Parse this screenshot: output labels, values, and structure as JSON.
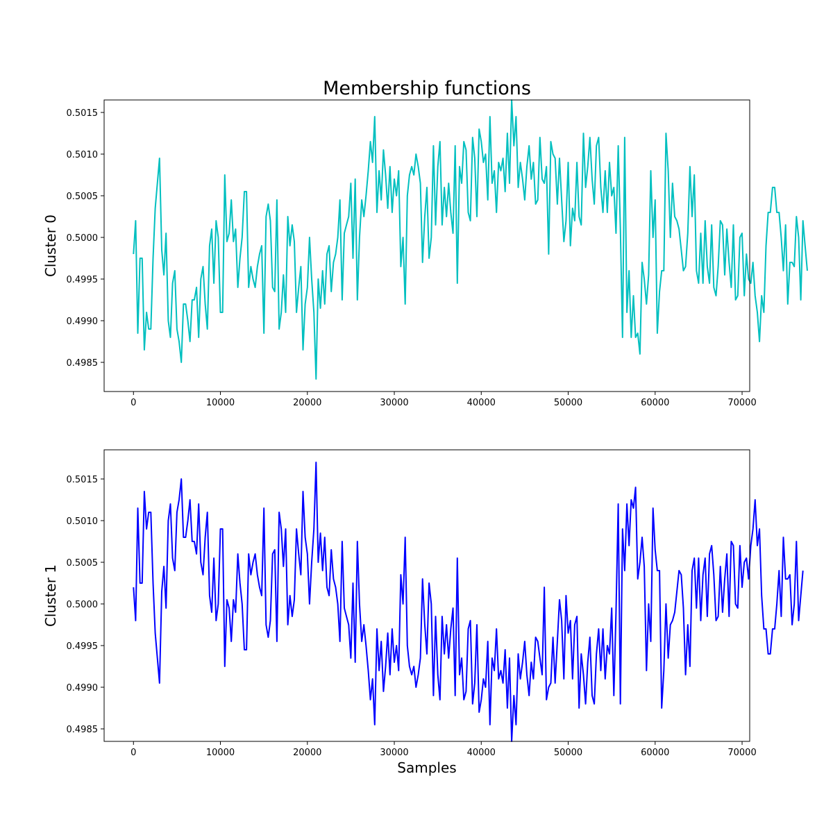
{
  "chart_data": [
    {
      "type": "line",
      "title": "Membership functions",
      "xlabel": "",
      "ylabel": "Cluster 0",
      "xlim": [
        -3375,
        70875
      ],
      "ylim": [
        0.49815,
        0.50165
      ],
      "xticks": [
        0,
        10000,
        20000,
        30000,
        40000,
        50000,
        60000,
        70000
      ],
      "xtick_labels": [
        "0",
        "10000",
        "20000",
        "30000",
        "40000",
        "50000",
        "60000",
        "70000"
      ],
      "yticks": [
        0.4985,
        0.499,
        0.4995,
        0.5,
        0.5005,
        0.501,
        0.5015
      ],
      "ytick_labels": [
        "0.4985",
        "0.4990",
        "0.4995",
        "0.5000",
        "0.5005",
        "0.5010",
        "0.5015"
      ],
      "grid": false,
      "series": [
        {
          "color": "#00bfbf",
          "x_start": 0,
          "x_step": 250,
          "values": [
            0.4998,
            0.5002,
            0.49885,
            0.49975,
            0.49975,
            0.49865,
            0.4991,
            0.4989,
            0.4989,
            0.49975,
            0.50035,
            0.50065,
            0.50095,
            0.49985,
            0.49955,
            0.50005,
            0.499,
            0.4988,
            0.49945,
            0.4996,
            0.4989,
            0.49875,
            0.4985,
            0.4992,
            0.4992,
            0.499,
            0.49875,
            0.49925,
            0.49925,
            0.4994,
            0.4988,
            0.4995,
            0.49965,
            0.4992,
            0.4989,
            0.4999,
            0.5001,
            0.49945,
            0.5002,
            0.5,
            0.4991,
            0.4991,
            0.50075,
            0.49995,
            0.50005,
            0.50045,
            0.49995,
            0.5001,
            0.4994,
            0.49975,
            0.5,
            0.50055,
            0.50055,
            0.4994,
            0.49965,
            0.4995,
            0.4994,
            0.49965,
            0.4998,
            0.4999,
            0.49885,
            0.50025,
            0.5004,
            0.5002,
            0.4994,
            0.49935,
            0.50045,
            0.4989,
            0.4991,
            0.49955,
            0.4991,
            0.50025,
            0.4999,
            0.50015,
            0.49995,
            0.4991,
            0.4994,
            0.49965,
            0.49865,
            0.4992,
            0.4994,
            0.5,
            0.4995,
            0.4991,
            0.4983,
            0.4995,
            0.49915,
            0.4996,
            0.4992,
            0.4998,
            0.4999,
            0.49935,
            0.4997,
            0.4998,
            0.5,
            0.50045,
            0.49925,
            0.50005,
            0.50015,
            0.50025,
            0.50065,
            0.49975,
            0.5007,
            0.49925,
            0.5,
            0.50045,
            0.50025,
            0.5005,
            0.5008,
            0.50115,
            0.5009,
            0.50145,
            0.5003,
            0.5008,
            0.50045,
            0.50105,
            0.50075,
            0.50035,
            0.50085,
            0.5003,
            0.5007,
            0.5005,
            0.5008,
            0.49965,
            0.5,
            0.4992,
            0.5005,
            0.50075,
            0.50085,
            0.50075,
            0.501,
            0.50085,
            0.50065,
            0.4997,
            0.50025,
            0.5006,
            0.49975,
            0.5,
            0.5011,
            0.50015,
            0.50085,
            0.50115,
            0.50015,
            0.5006,
            0.50025,
            0.50065,
            0.5003,
            0.50005,
            0.5011,
            0.49945,
            0.50085,
            0.50065,
            0.50115,
            0.50105,
            0.5003,
            0.5002,
            0.5012,
            0.50095,
            0.50025,
            0.5013,
            0.50115,
            0.5009,
            0.501,
            0.50045,
            0.50145,
            0.50065,
            0.5008,
            0.5003,
            0.5009,
            0.5008,
            0.50095,
            0.50055,
            0.50125,
            0.50065,
            0.50165,
            0.5011,
            0.50145,
            0.5006,
            0.5009,
            0.5007,
            0.50045,
            0.50085,
            0.5011,
            0.5007,
            0.5009,
            0.5004,
            0.50045,
            0.5012,
            0.5007,
            0.50065,
            0.50085,
            0.4998,
            0.50115,
            0.501,
            0.50095,
            0.5004,
            0.50095,
            0.50045,
            0.49995,
            0.5002,
            0.5009,
            0.4999,
            0.50035,
            0.5002,
            0.5009,
            0.50025,
            0.50015,
            0.50125,
            0.5006,
            0.50085,
            0.5012,
            0.5007,
            0.5004,
            0.5011,
            0.5012,
            0.5006,
            0.5003,
            0.5008,
            0.5003,
            0.5009,
            0.5005,
            0.5006,
            0.50005,
            0.5011,
            0.5001,
            0.4988,
            0.5012,
            0.4991,
            0.4996,
            0.4988,
            0.4993,
            0.4988,
            0.49885,
            0.4986,
            0.4997,
            0.4995,
            0.4992,
            0.49955,
            0.5008,
            0.5,
            0.50045,
            0.49885,
            0.49935,
            0.4996,
            0.4996,
            0.50125,
            0.5008,
            0.5,
            0.50065,
            0.50025,
            0.5002,
            0.5001,
            0.49985,
            0.4996,
            0.49965,
            0.50005,
            0.50085,
            0.50025,
            0.50075,
            0.4996,
            0.49945,
            0.50005,
            0.49945,
            0.5002,
            0.49965,
            0.49945,
            0.50015,
            0.4994,
            0.4993,
            0.49965,
            0.5002,
            0.50015,
            0.49955,
            0.5001,
            0.4997,
            0.4994,
            0.50015,
            0.49925,
            0.4993,
            0.5,
            0.50005,
            0.4993,
            0.4998,
            0.4995,
            0.49945,
            0.4997,
            0.4993,
            0.4991,
            0.49875,
            0.4993,
            0.4991,
            0.4999,
            0.5003,
            0.5003,
            0.5006,
            0.5006,
            0.5003,
            0.5003,
            0.5,
            0.4996,
            0.50015,
            0.4992,
            0.4997,
            0.4997,
            0.49965,
            0.50025,
            0.5,
            0.49925,
            0.5002,
            0.4999,
            0.4996
          ]
        }
      ]
    },
    {
      "type": "line",
      "title": "",
      "xlabel": "Samples",
      "ylabel": "Cluster 1",
      "xlim": [
        -3375,
        70875
      ],
      "ylim": [
        0.49835,
        0.50185
      ],
      "xticks": [
        0,
        10000,
        20000,
        30000,
        40000,
        50000,
        60000,
        70000
      ],
      "xtick_labels": [
        "0",
        "10000",
        "20000",
        "30000",
        "40000",
        "50000",
        "60000",
        "70000"
      ],
      "yticks": [
        0.4985,
        0.499,
        0.4995,
        0.5,
        0.5005,
        0.501,
        0.5015
      ],
      "ytick_labels": [
        "0.4985",
        "0.4990",
        "0.4995",
        "0.5000",
        "0.5005",
        "0.5010",
        "0.5015"
      ],
      "grid": false,
      "series": [
        {
          "color": "#0000ff",
          "x_start": 0,
          "x_step": 250,
          "values": [
            0.5002,
            0.4998,
            0.50115,
            0.50025,
            0.50025,
            0.50135,
            0.5009,
            0.5011,
            0.5011,
            0.50025,
            0.49965,
            0.49935,
            0.49905,
            0.50015,
            0.50045,
            0.49995,
            0.501,
            0.5012,
            0.50055,
            0.5004,
            0.5011,
            0.50125,
            0.5015,
            0.5008,
            0.5008,
            0.501,
            0.50125,
            0.50075,
            0.50075,
            0.5006,
            0.5012,
            0.5005,
            0.50035,
            0.5008,
            0.5011,
            0.5001,
            0.4999,
            0.50055,
            0.4998,
            0.5,
            0.5009,
            0.5009,
            0.49925,
            0.50005,
            0.49995,
            0.49955,
            0.50005,
            0.4999,
            0.5006,
            0.50025,
            0.5,
            0.49945,
            0.49945,
            0.5006,
            0.50035,
            0.5005,
            0.5006,
            0.50035,
            0.5002,
            0.5001,
            0.50115,
            0.49975,
            0.4996,
            0.4998,
            0.5006,
            0.50065,
            0.49955,
            0.5011,
            0.5009,
            0.50045,
            0.5009,
            0.49975,
            0.5001,
            0.49985,
            0.50005,
            0.5009,
            0.5006,
            0.50035,
            0.50135,
            0.5008,
            0.5006,
            0.5,
            0.5005,
            0.5009,
            0.5017,
            0.5005,
            0.50085,
            0.5004,
            0.5008,
            0.5002,
            0.5001,
            0.50065,
            0.5003,
            0.5002,
            0.5,
            0.49955,
            0.50075,
            0.49995,
            0.49985,
            0.49975,
            0.49935,
            0.50025,
            0.4993,
            0.50075,
            0.5,
            0.49955,
            0.49975,
            0.4995,
            0.4992,
            0.49885,
            0.4991,
            0.49855,
            0.4997,
            0.4992,
            0.49955,
            0.49895,
            0.49925,
            0.49965,
            0.49915,
            0.4997,
            0.4993,
            0.4995,
            0.4992,
            0.50035,
            0.5,
            0.5008,
            0.4995,
            0.49925,
            0.49915,
            0.49925,
            0.499,
            0.49915,
            0.49935,
            0.5003,
            0.49975,
            0.4994,
            0.50025,
            0.5,
            0.4989,
            0.49985,
            0.49915,
            0.49885,
            0.49985,
            0.4994,
            0.49975,
            0.49935,
            0.4997,
            0.49995,
            0.4989,
            0.50055,
            0.49915,
            0.49935,
            0.49885,
            0.49895,
            0.4997,
            0.4998,
            0.4988,
            0.49905,
            0.49975,
            0.4987,
            0.49885,
            0.4991,
            0.499,
            0.49955,
            0.49855,
            0.49935,
            0.4992,
            0.4997,
            0.4991,
            0.4992,
            0.49905,
            0.49945,
            0.49875,
            0.49935,
            0.49835,
            0.4989,
            0.49855,
            0.4994,
            0.4991,
            0.4993,
            0.49955,
            0.49915,
            0.4989,
            0.4993,
            0.4991,
            0.4996,
            0.49955,
            0.49935,
            0.49915,
            0.5002,
            0.49885,
            0.499,
            0.49905,
            0.4996,
            0.49905,
            0.49955,
            0.50005,
            0.4998,
            0.4991,
            0.5001,
            0.49965,
            0.4998,
            0.4991,
            0.49975,
            0.49985,
            0.49875,
            0.4994,
            0.49915,
            0.4988,
            0.4993,
            0.4996,
            0.4989,
            0.4988,
            0.4994,
            0.4997,
            0.4992,
            0.4997,
            0.4991,
            0.4995,
            0.4994,
            0.49995,
            0.4989,
            0.4999,
            0.5012,
            0.4988,
            0.5009,
            0.5004,
            0.5012,
            0.5007,
            0.50125,
            0.50115,
            0.5014,
            0.5003,
            0.5005,
            0.5008,
            0.50045,
            0.4992,
            0.5,
            0.49955,
            0.50115,
            0.50065,
            0.5004,
            0.5004,
            0.49875,
            0.4992,
            0.5,
            0.49935,
            0.49975,
            0.4998,
            0.4999,
            0.50015,
            0.5004,
            0.50035,
            0.49995,
            0.49915,
            0.49975,
            0.49925,
            0.5004,
            0.50055,
            0.49995,
            0.50055,
            0.4998,
            0.50035,
            0.50055,
            0.49985,
            0.5006,
            0.5007,
            0.50035,
            0.4998,
            0.49985,
            0.50045,
            0.4999,
            0.5003,
            0.5006,
            0.49985,
            0.50075,
            0.5007,
            0.5,
            0.49995,
            0.5007,
            0.5002,
            0.5005,
            0.50055,
            0.5003,
            0.5007,
            0.5009,
            0.50125,
            0.5007,
            0.5009,
            0.5001,
            0.4997,
            0.4997,
            0.4994,
            0.4994,
            0.4997,
            0.4997,
            0.5,
            0.5004,
            0.49985,
            0.5008,
            0.5003,
            0.5003,
            0.50035,
            0.49975,
            0.5,
            0.50075,
            0.4998,
            0.5001,
            0.5004
          ]
        }
      ]
    }
  ]
}
